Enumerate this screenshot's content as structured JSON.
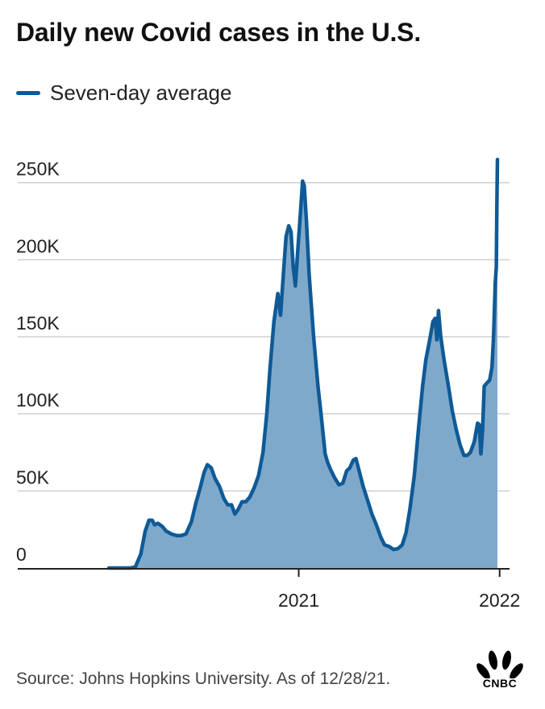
{
  "header": {
    "title": "Daily new Covid cases in the U.S."
  },
  "legend": {
    "label": "Seven-day average",
    "color": "#0f5a96"
  },
  "footer": {
    "source": "Source: Johns Hopkins University. As of 12/28/21."
  },
  "brand": {
    "name": "CNBC",
    "logo_icon": "cnbc-peacock-icon"
  },
  "chart_data": {
    "type": "area",
    "title": "Daily new Covid cases in the U.S.",
    "xlabel": "",
    "ylabel": "",
    "ylim": [
      0,
      265000
    ],
    "xlim": [
      "2020-01-22",
      "2021-12-28"
    ],
    "y_ticks": [
      {
        "value": 0,
        "label": "0"
      },
      {
        "value": 50000,
        "label": "50K"
      },
      {
        "value": 100000,
        "label": "100K"
      },
      {
        "value": 150000,
        "label": "150K"
      },
      {
        "value": 200000,
        "label": "200K"
      },
      {
        "value": 250000,
        "label": "250K"
      }
    ],
    "x_ticks": [
      {
        "value": "2021-01-01",
        "label": "2021"
      },
      {
        "value": "2022-01-01",
        "label": "2022"
      }
    ],
    "grid": true,
    "line_color": "#0f5a96",
    "fill_color": "#7fa9cb",
    "series": [
      {
        "name": "Seven-day average",
        "points": [
          [
            "2020-01-22",
            0
          ],
          [
            "2020-03-01",
            0
          ],
          [
            "2020-03-10",
            600
          ],
          [
            "2020-03-20",
            9000
          ],
          [
            "2020-03-28",
            24000
          ],
          [
            "2020-04-04",
            31000
          ],
          [
            "2020-04-10",
            31000
          ],
          [
            "2020-04-14",
            28000
          ],
          [
            "2020-04-20",
            29000
          ],
          [
            "2020-04-28",
            27000
          ],
          [
            "2020-05-05",
            24000
          ],
          [
            "2020-05-15",
            22000
          ],
          [
            "2020-05-25",
            21000
          ],
          [
            "2020-06-01",
            21000
          ],
          [
            "2020-06-10",
            22000
          ],
          [
            "2020-06-20",
            30000
          ],
          [
            "2020-06-28",
            42000
          ],
          [
            "2020-07-06",
            52000
          ],
          [
            "2020-07-13",
            62000
          ],
          [
            "2020-07-19",
            67000
          ],
          [
            "2020-07-26",
            65000
          ],
          [
            "2020-08-02",
            58000
          ],
          [
            "2020-08-10",
            53000
          ],
          [
            "2020-08-18",
            45000
          ],
          [
            "2020-08-25",
            41000
          ],
          [
            "2020-09-01",
            41000
          ],
          [
            "2020-09-07",
            35000
          ],
          [
            "2020-09-13",
            38000
          ],
          [
            "2020-09-20",
            43000
          ],
          [
            "2020-09-27",
            43000
          ],
          [
            "2020-10-04",
            46000
          ],
          [
            "2020-10-12",
            52000
          ],
          [
            "2020-10-20",
            60000
          ],
          [
            "2020-10-28",
            75000
          ],
          [
            "2020-11-04",
            100000
          ],
          [
            "2020-11-10",
            130000
          ],
          [
            "2020-11-17",
            160000
          ],
          [
            "2020-11-24",
            178000
          ],
          [
            "2020-11-29",
            164000
          ],
          [
            "2020-12-04",
            190000
          ],
          [
            "2020-12-09",
            215000
          ],
          [
            "2020-12-14",
            222000
          ],
          [
            "2020-12-18",
            218000
          ],
          [
            "2020-12-22",
            195000
          ],
          [
            "2020-12-26",
            183000
          ],
          [
            "2020-12-30",
            205000
          ],
          [
            "2021-01-04",
            230000
          ],
          [
            "2021-01-08",
            251000
          ],
          [
            "2021-01-11",
            248000
          ],
          [
            "2021-01-15",
            225000
          ],
          [
            "2021-01-20",
            190000
          ],
          [
            "2021-01-28",
            150000
          ],
          [
            "2021-02-05",
            118000
          ],
          [
            "2021-02-12",
            95000
          ],
          [
            "2021-02-18",
            74000
          ],
          [
            "2021-02-23",
            68000
          ],
          [
            "2021-03-01",
            63000
          ],
          [
            "2021-03-08",
            58000
          ],
          [
            "2021-03-15",
            54000
          ],
          [
            "2021-03-22",
            55000
          ],
          [
            "2021-03-29",
            63000
          ],
          [
            "2021-04-04",
            65000
          ],
          [
            "2021-04-10",
            70000
          ],
          [
            "2021-04-15",
            71000
          ],
          [
            "2021-04-20",
            64000
          ],
          [
            "2021-04-28",
            53000
          ],
          [
            "2021-05-06",
            44000
          ],
          [
            "2021-05-14",
            35000
          ],
          [
            "2021-05-22",
            28000
          ],
          [
            "2021-05-30",
            20000
          ],
          [
            "2021-06-06",
            15000
          ],
          [
            "2021-06-14",
            14000
          ],
          [
            "2021-06-22",
            12000
          ],
          [
            "2021-06-30",
            12500
          ],
          [
            "2021-07-08",
            15000
          ],
          [
            "2021-07-15",
            23000
          ],
          [
            "2021-07-22",
            38000
          ],
          [
            "2021-07-30",
            60000
          ],
          [
            "2021-08-07",
            92000
          ],
          [
            "2021-08-14",
            118000
          ],
          [
            "2021-08-20",
            135000
          ],
          [
            "2021-08-27",
            148000
          ],
          [
            "2021-09-02",
            160000
          ],
          [
            "2021-09-06",
            162000
          ],
          [
            "2021-09-09",
            148000
          ],
          [
            "2021-09-12",
            167000
          ],
          [
            "2021-09-16",
            150000
          ],
          [
            "2021-09-22",
            135000
          ],
          [
            "2021-09-30",
            118000
          ],
          [
            "2021-10-07",
            102000
          ],
          [
            "2021-10-14",
            90000
          ],
          [
            "2021-10-21",
            80000
          ],
          [
            "2021-10-28",
            73000
          ],
          [
            "2021-11-03",
            73000
          ],
          [
            "2021-11-09",
            75000
          ],
          [
            "2021-11-16",
            82000
          ],
          [
            "2021-11-22",
            94000
          ],
          [
            "2021-11-25",
            93000
          ],
          [
            "2021-11-28",
            74000
          ],
          [
            "2021-12-01",
            90000
          ],
          [
            "2021-12-04",
            118000
          ],
          [
            "2021-12-09",
            120000
          ],
          [
            "2021-12-14",
            122000
          ],
          [
            "2021-12-18",
            130000
          ],
          [
            "2021-12-21",
            150000
          ],
          [
            "2021-12-24",
            185000
          ],
          [
            "2021-12-26",
            195000
          ],
          [
            "2021-12-27",
            235000
          ],
          [
            "2021-12-28",
            265000
          ]
        ]
      }
    ]
  }
}
